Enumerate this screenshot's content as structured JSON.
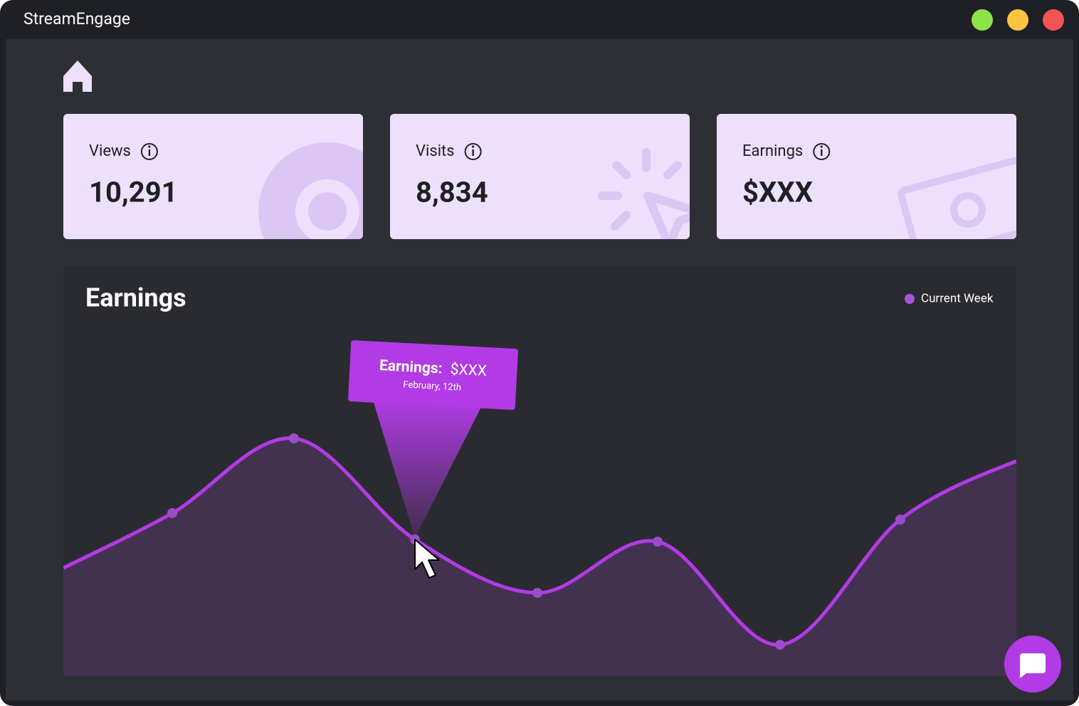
{
  "app": {
    "title": "StreamEngage"
  },
  "cards": [
    {
      "label": "Views",
      "value": "10,291"
    },
    {
      "label": "Visits",
      "value": "8,834"
    },
    {
      "label": "Earnings",
      "value": "$XXX"
    }
  ],
  "chart": {
    "title": "Earnings",
    "legend": "Current Week",
    "tooltip": {
      "label": "Earnings:",
      "value": "$XXX",
      "date": "February, 12th"
    }
  }
}
